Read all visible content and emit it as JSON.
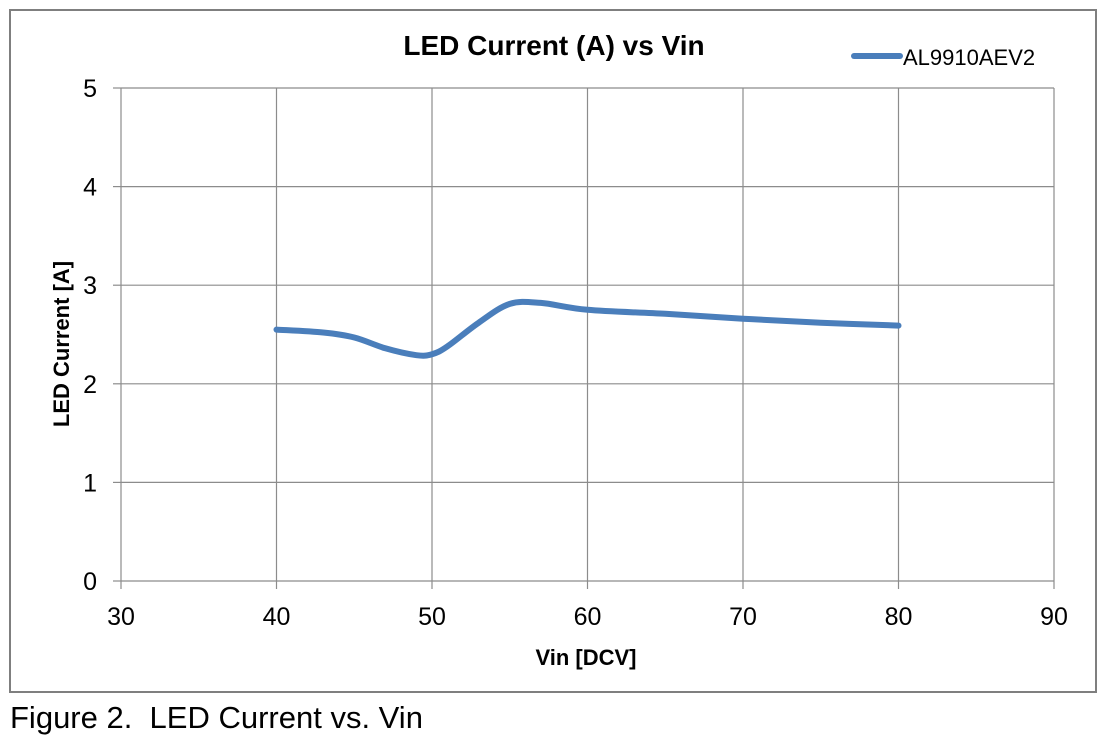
{
  "chart_data": {
    "type": "line",
    "title": "LED Current (A) vs Vin",
    "xlabel": "Vin [DCV]",
    "ylabel": "LED Current [A]",
    "xlim": [
      30,
      90
    ],
    "ylim": [
      0,
      5
    ],
    "xticks": [
      "30",
      "40",
      "50",
      "60",
      "70",
      "80",
      "90"
    ],
    "yticks": [
      "0",
      "1",
      "2",
      "3",
      "4",
      "5"
    ],
    "grid": true,
    "legend_position": "top-right",
    "series": [
      {
        "name": "AL9910AEV2",
        "color": "#4a7ebb",
        "x": [
          40,
          43,
          45,
          47,
          49,
          50,
          51,
          53,
          55,
          57,
          60,
          65,
          70,
          75,
          80
        ],
        "y": [
          2.55,
          2.52,
          2.47,
          2.36,
          2.29,
          2.3,
          2.38,
          2.62,
          2.81,
          2.82,
          2.75,
          2.71,
          2.66,
          2.62,
          2.59
        ]
      }
    ]
  },
  "caption": "Figure 2.  LED Current vs. Vin"
}
